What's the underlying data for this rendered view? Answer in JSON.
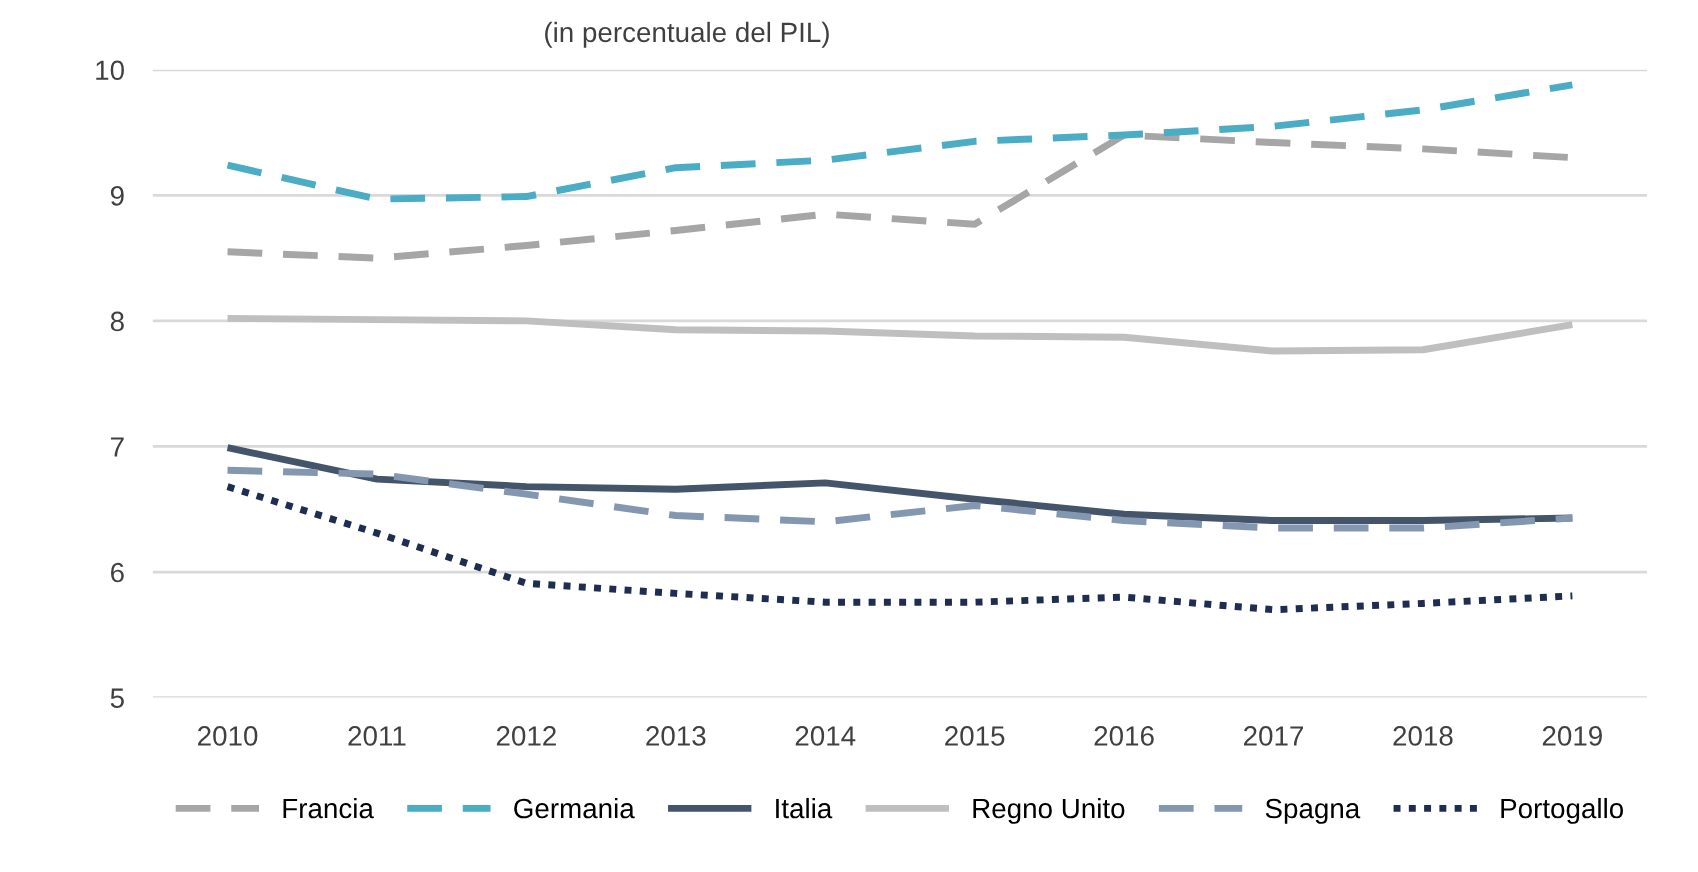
{
  "chart_data": {
    "type": "line",
    "subtitle": "(in percentuale del PIL)",
    "categories": [
      "2010",
      "2011",
      "2012",
      "2013",
      "2014",
      "2015",
      "2016",
      "2017",
      "2018",
      "2019"
    ],
    "ylim": [
      5,
      10
    ],
    "yticks": [
      5,
      6,
      7,
      8,
      9,
      10
    ],
    "grid": "y",
    "legend": "bottom",
    "marker": "none",
    "series": [
      {
        "name": "Francia",
        "color": "#a6a6a6",
        "line_style": "dashed",
        "values": [
          8.55,
          8.5,
          8.6,
          8.72,
          8.85,
          8.77,
          9.48,
          9.42,
          9.37,
          9.3
        ]
      },
      {
        "name": "Germania",
        "color": "#4bacc6",
        "line_style": "dashed",
        "values": [
          9.24,
          8.97,
          8.99,
          9.22,
          9.28,
          9.43,
          9.48,
          9.55,
          9.68,
          9.88
        ]
      },
      {
        "name": "Italia",
        "color": "#44546a",
        "line_style": "solid",
        "values": [
          6.99,
          6.74,
          6.68,
          6.66,
          6.71,
          6.58,
          6.46,
          6.41,
          6.41,
          6.43
        ]
      },
      {
        "name": "Regno Unito",
        "color": "#bfbfbf",
        "line_style": "solid",
        "values": [
          8.02,
          8.01,
          8.0,
          7.93,
          7.92,
          7.88,
          7.87,
          7.76,
          7.77,
          7.97
        ]
      },
      {
        "name": "Spagna",
        "color": "#8497b0",
        "line_style": "dashed",
        "values": [
          6.81,
          6.78,
          6.62,
          6.45,
          6.4,
          6.53,
          6.41,
          6.35,
          6.35,
          6.43
        ]
      },
      {
        "name": "Portogallo",
        "color": "#1f2d50",
        "line_style": "dotted",
        "values": [
          6.68,
          6.31,
          5.91,
          5.83,
          5.76,
          5.76,
          5.8,
          5.7,
          5.75,
          5.81
        ]
      }
    ]
  }
}
